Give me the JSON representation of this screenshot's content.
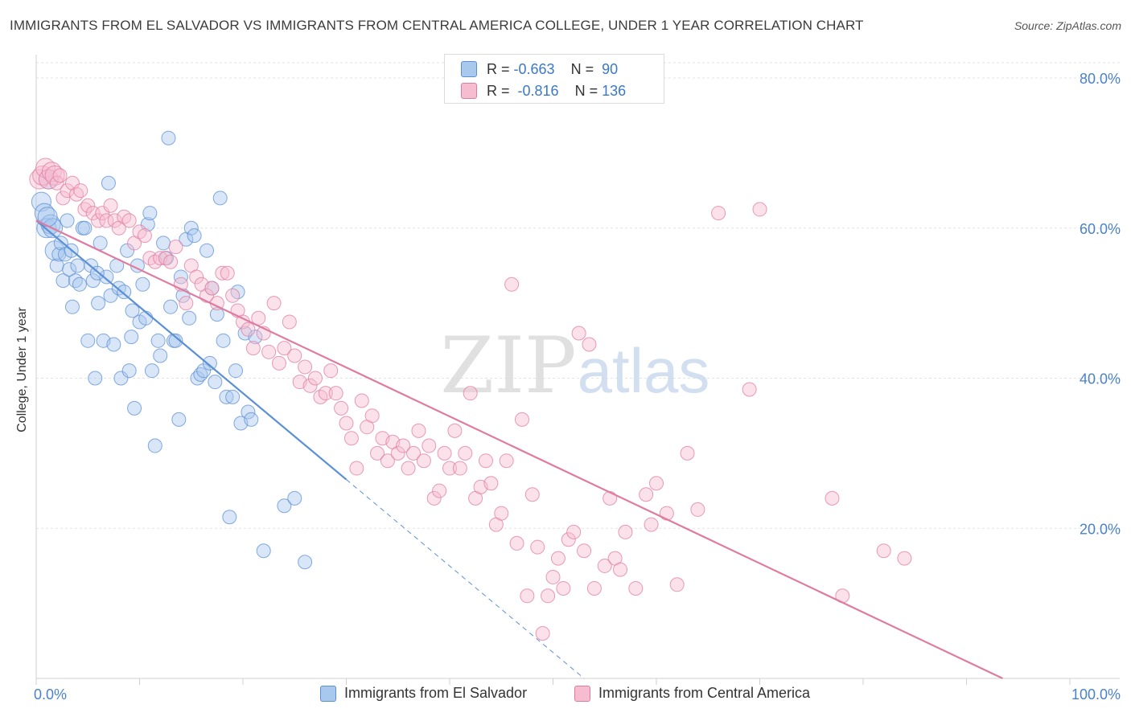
{
  "title": "IMMIGRANTS FROM EL SALVADOR VS IMMIGRANTS FROM CENTRAL AMERICA COLLEGE, UNDER 1 YEAR CORRELATION CHART",
  "source": "Source: ZipAtlas.com",
  "watermark": {
    "zip": "ZIP",
    "atlas": "atlas"
  },
  "stats_legend": [
    {
      "r_label": "R =",
      "r_value": "-0.663",
      "n_label": "N =",
      "n_value": "90",
      "color": "#a9c8ee",
      "edge": "#5b8fd6"
    },
    {
      "r_label": "R =",
      "r_value": "-0.816",
      "n_label": "N =",
      "n_value": "136",
      "color": "#f7bcd0",
      "edge": "#e07ba0"
    }
  ],
  "chart_data": {
    "type": "scatter",
    "xlabel": "",
    "ylabel": "College, Under 1 year",
    "xlim": [
      0,
      100
    ],
    "ylim": [
      0,
      80
    ],
    "x_tick_labels": [
      "0.0%",
      "100.0%"
    ],
    "y_tick_labels": [
      "20.0%",
      "40.0%",
      "60.0%",
      "80.0%"
    ],
    "y_ticks": [
      20,
      40,
      60,
      80
    ],
    "grid": true,
    "legend": "bottom",
    "series": [
      {
        "name": "Immigrants from El Salvador",
        "color": "#5b8fd6",
        "fill": "#a9c8ee",
        "trend": {
          "x0": 0,
          "y0": 61,
          "x1": 30,
          "y1": 26.5,
          "dash_to_x": 53,
          "dash_to_y": 0
        },
        "points": [
          [
            0.5,
            63.5
          ],
          [
            0.8,
            62
          ],
          [
            1.0,
            60
          ],
          [
            1.2,
            66.5
          ],
          [
            1.4,
            60.5
          ],
          [
            1.6,
            60
          ],
          [
            1.8,
            57
          ],
          [
            2.0,
            55
          ],
          [
            2.2,
            56.5
          ],
          [
            2.4,
            58
          ],
          [
            2.6,
            53
          ],
          [
            3.0,
            61
          ],
          [
            3.2,
            54.5
          ],
          [
            3.5,
            49.5
          ],
          [
            3.8,
            53
          ],
          [
            4.0,
            55
          ],
          [
            4.2,
            52.5
          ],
          [
            4.5,
            60
          ],
          [
            4.7,
            60
          ],
          [
            5.0,
            45
          ],
          [
            5.3,
            55
          ],
          [
            5.5,
            53
          ],
          [
            5.7,
            40
          ],
          [
            6.0,
            50
          ],
          [
            6.2,
            58
          ],
          [
            6.5,
            45
          ],
          [
            6.8,
            53.5
          ],
          [
            7.0,
            66
          ],
          [
            7.2,
            51
          ],
          [
            7.5,
            44.5
          ],
          [
            7.8,
            55
          ],
          [
            8.0,
            52
          ],
          [
            8.2,
            40
          ],
          [
            8.5,
            51.5
          ],
          [
            8.8,
            57
          ],
          [
            9.0,
            41
          ],
          [
            9.2,
            45.5
          ],
          [
            9.5,
            36
          ],
          [
            9.8,
            55
          ],
          [
            10.0,
            47.5
          ],
          [
            10.3,
            52.5
          ],
          [
            10.6,
            48
          ],
          [
            10.8,
            60.5
          ],
          [
            11.0,
            62
          ],
          [
            11.2,
            41
          ],
          [
            11.5,
            31
          ],
          [
            11.8,
            45
          ],
          [
            12.0,
            43
          ],
          [
            12.3,
            58
          ],
          [
            12.6,
            56
          ],
          [
            12.8,
            72
          ],
          [
            13.0,
            49.5
          ],
          [
            13.3,
            45
          ],
          [
            13.5,
            45
          ],
          [
            13.8,
            34.5
          ],
          [
            14.0,
            53.5
          ],
          [
            14.2,
            51
          ],
          [
            14.5,
            58.5
          ],
          [
            14.8,
            48
          ],
          [
            15.0,
            60
          ],
          [
            15.3,
            59
          ],
          [
            15.6,
            40
          ],
          [
            15.9,
            40.5
          ],
          [
            16.2,
            41
          ],
          [
            16.5,
            57
          ],
          [
            16.8,
            42
          ],
          [
            17.0,
            52
          ],
          [
            17.3,
            39.5
          ],
          [
            17.5,
            48.5
          ],
          [
            17.8,
            64
          ],
          [
            18.1,
            45
          ],
          [
            18.4,
            37.5
          ],
          [
            18.7,
            21.5
          ],
          [
            19.0,
            37.5
          ],
          [
            19.3,
            41
          ],
          [
            19.5,
            51.5
          ],
          [
            19.8,
            34
          ],
          [
            20.2,
            46
          ],
          [
            20.5,
            35.5
          ],
          [
            20.8,
            34.5
          ],
          [
            21.2,
            45.5
          ],
          [
            22.0,
            17
          ],
          [
            24.0,
            23
          ],
          [
            25.0,
            24
          ],
          [
            26.0,
            15.5
          ],
          [
            1.1,
            61.5
          ],
          [
            2.8,
            56.5
          ],
          [
            3.4,
            57
          ],
          [
            5.9,
            54
          ],
          [
            9.3,
            49
          ]
        ]
      },
      {
        "name": "Immigrants from Central America",
        "color": "#e07ba0",
        "fill": "#f7bcd0",
        "trend": {
          "x0": 0,
          "y0": 61,
          "x1": 93.5,
          "y1": 0
        },
        "points": [
          [
            0.3,
            66.5
          ],
          [
            0.6,
            67
          ],
          [
            0.9,
            68
          ],
          [
            1.2,
            66.5
          ],
          [
            1.5,
            67.5
          ],
          [
            1.8,
            67
          ],
          [
            2.0,
            66
          ],
          [
            2.3,
            67
          ],
          [
            2.6,
            64
          ],
          [
            3.0,
            65
          ],
          [
            3.5,
            66
          ],
          [
            3.9,
            64.5
          ],
          [
            4.3,
            65
          ],
          [
            4.7,
            62.5
          ],
          [
            5.0,
            63
          ],
          [
            5.5,
            62
          ],
          [
            6.0,
            61
          ],
          [
            6.4,
            62
          ],
          [
            6.8,
            61
          ],
          [
            7.2,
            63
          ],
          [
            7.6,
            61
          ],
          [
            8.0,
            60
          ],
          [
            8.5,
            61.5
          ],
          [
            9.0,
            61
          ],
          [
            9.5,
            58
          ],
          [
            10.0,
            59.5
          ],
          [
            10.5,
            59
          ],
          [
            11.0,
            56
          ],
          [
            11.5,
            55.5
          ],
          [
            12.0,
            56
          ],
          [
            12.5,
            56
          ],
          [
            13.0,
            55.5
          ],
          [
            13.5,
            57.5
          ],
          [
            14.0,
            52.5
          ],
          [
            14.5,
            50
          ],
          [
            15.0,
            55
          ],
          [
            15.5,
            53.5
          ],
          [
            16.0,
            52.5
          ],
          [
            16.5,
            51
          ],
          [
            17.0,
            52
          ],
          [
            17.5,
            50
          ],
          [
            18.0,
            54
          ],
          [
            18.5,
            54
          ],
          [
            19.0,
            51
          ],
          [
            19.5,
            49
          ],
          [
            20.0,
            47.5
          ],
          [
            20.5,
            46.5
          ],
          [
            21.0,
            44
          ],
          [
            21.5,
            48
          ],
          [
            22.0,
            46
          ],
          [
            22.5,
            43.5
          ],
          [
            23.0,
            50
          ],
          [
            23.5,
            42
          ],
          [
            24.0,
            44
          ],
          [
            24.5,
            47.5
          ],
          [
            25.0,
            43
          ],
          [
            25.5,
            39.5
          ],
          [
            26.0,
            41.5
          ],
          [
            26.5,
            39
          ],
          [
            27.0,
            40
          ],
          [
            27.5,
            37.5
          ],
          [
            28.0,
            38
          ],
          [
            28.5,
            41
          ],
          [
            29.0,
            38
          ],
          [
            29.5,
            36
          ],
          [
            30.0,
            34
          ],
          [
            30.5,
            32
          ],
          [
            31.0,
            28
          ],
          [
            31.5,
            37
          ],
          [
            32.0,
            33.5
          ],
          [
            32.5,
            35
          ],
          [
            33.0,
            30
          ],
          [
            33.5,
            32
          ],
          [
            34.0,
            29
          ],
          [
            34.5,
            31.5
          ],
          [
            35.0,
            30
          ],
          [
            35.5,
            31
          ],
          [
            36.0,
            28
          ],
          [
            36.5,
            30
          ],
          [
            37.0,
            33
          ],
          [
            37.5,
            29
          ],
          [
            38.0,
            31
          ],
          [
            38.5,
            24
          ],
          [
            39.0,
            25
          ],
          [
            39.5,
            30
          ],
          [
            40.0,
            28
          ],
          [
            40.5,
            33
          ],
          [
            41.0,
            28
          ],
          [
            41.5,
            30
          ],
          [
            42.0,
            38
          ],
          [
            42.5,
            24
          ],
          [
            43.0,
            25.5
          ],
          [
            43.5,
            29
          ],
          [
            44.0,
            26
          ],
          [
            44.5,
            20.5
          ],
          [
            45.0,
            22
          ],
          [
            45.5,
            29
          ],
          [
            46.0,
            52.5
          ],
          [
            46.5,
            18
          ],
          [
            47.0,
            34.5
          ],
          [
            47.5,
            11
          ],
          [
            48.0,
            24.5
          ],
          [
            48.5,
            17.5
          ],
          [
            49.0,
            6
          ],
          [
            49.5,
            11
          ],
          [
            50.0,
            13.5
          ],
          [
            50.5,
            16
          ],
          [
            51.0,
            12
          ],
          [
            51.5,
            18.5
          ],
          [
            52.0,
            19.5
          ],
          [
            52.5,
            46
          ],
          [
            53.0,
            17
          ],
          [
            53.5,
            44.5
          ],
          [
            54.0,
            12
          ],
          [
            55.0,
            15
          ],
          [
            55.5,
            24
          ],
          [
            56.0,
            16
          ],
          [
            56.5,
            14.5
          ],
          [
            57.0,
            19.5
          ],
          [
            58.0,
            12
          ],
          [
            59.0,
            24.5
          ],
          [
            59.5,
            20.5
          ],
          [
            60.0,
            26
          ],
          [
            61.0,
            22
          ],
          [
            62.0,
            12.5
          ],
          [
            63.0,
            30
          ],
          [
            64.0,
            22.5
          ],
          [
            66.0,
            62
          ],
          [
            69.0,
            38.5
          ],
          [
            70.0,
            62.5
          ],
          [
            77.0,
            24
          ],
          [
            78.0,
            11
          ],
          [
            82.0,
            17
          ],
          [
            84.0,
            16
          ]
        ]
      }
    ]
  }
}
